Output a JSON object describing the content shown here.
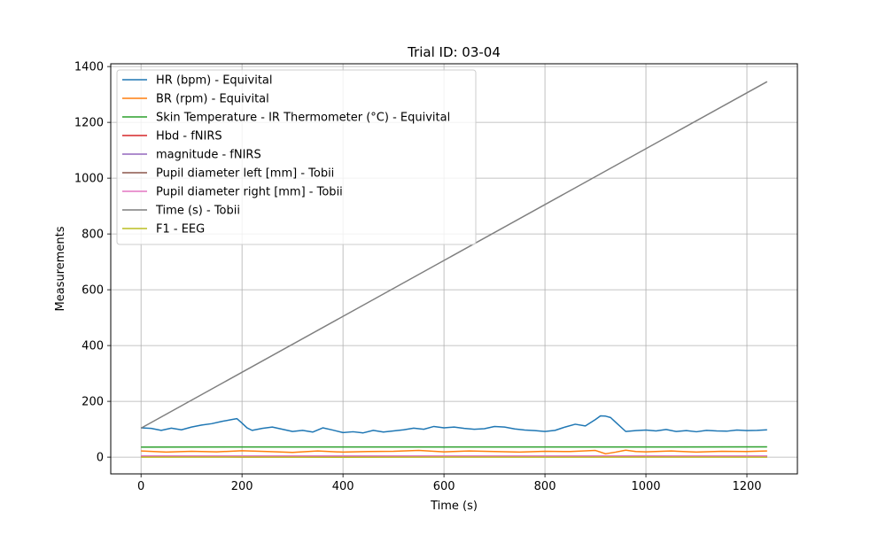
{
  "chart_data": {
    "type": "line",
    "title": "Trial ID: 03-04",
    "xlabel": "Time (s)",
    "ylabel": "Measurements",
    "xlim": [
      -60,
      1300
    ],
    "ylim": [
      -60,
      1410
    ],
    "xticks": [
      0,
      200,
      400,
      600,
      800,
      1000,
      1200
    ],
    "yticks": [
      0,
      200,
      400,
      600,
      800,
      1000,
      1200,
      1400
    ],
    "xtick_labels": [
      "0",
      "200",
      "400",
      "600",
      "800",
      "1000",
      "1200"
    ],
    "ytick_labels": [
      "0",
      "200",
      "400",
      "600",
      "800",
      "1000",
      "1200",
      "1400"
    ],
    "grid": true,
    "legend_position": "upper-left",
    "series": [
      {
        "name": "HR (bpm) - Equivital",
        "color": "#1f77b4",
        "x": [
          0,
          20,
          40,
          60,
          80,
          100,
          120,
          140,
          160,
          180,
          190,
          200,
          210,
          220,
          240,
          260,
          280,
          300,
          320,
          340,
          360,
          380,
          400,
          420,
          440,
          460,
          480,
          500,
          520,
          540,
          560,
          580,
          600,
          620,
          640,
          660,
          680,
          700,
          720,
          740,
          760,
          780,
          800,
          820,
          840,
          860,
          880,
          900,
          910,
          920,
          930,
          940,
          960,
          980,
          1000,
          1020,
          1040,
          1060,
          1080,
          1100,
          1120,
          1140,
          1160,
          1180,
          1200,
          1220,
          1240
        ],
        "y": [
          105,
          103,
          96,
          104,
          98,
          108,
          115,
          120,
          128,
          135,
          138,
          122,
          105,
          96,
          103,
          108,
          100,
          92,
          96,
          90,
          105,
          97,
          88,
          91,
          87,
          96,
          90,
          94,
          98,
          104,
          100,
          110,
          105,
          108,
          103,
          100,
          102,
          110,
          108,
          101,
          97,
          95,
          92,
          96,
          108,
          118,
          112,
          135,
          148,
          147,
          142,
          125,
          92,
          95,
          97,
          94,
          99,
          92,
          95,
          91,
          96,
          94,
          93,
          97,
          95,
          96,
          98
        ]
      },
      {
        "name": "BR (rpm) - Equivital",
        "color": "#ff7f0e",
        "x": [
          0,
          50,
          100,
          150,
          200,
          250,
          300,
          350,
          400,
          450,
          500,
          550,
          600,
          650,
          700,
          750,
          800,
          850,
          900,
          920,
          940,
          960,
          980,
          1000,
          1050,
          1100,
          1150,
          1200,
          1240
        ],
        "y": [
          22,
          18,
          21,
          19,
          23,
          20,
          17,
          22,
          18,
          20,
          21,
          24,
          19,
          22,
          20,
          18,
          21,
          20,
          24,
          12,
          18,
          25,
          20,
          19,
          22,
          18,
          21,
          20,
          22
        ]
      },
      {
        "name": "Skin Temperature - IR Thermometer (°C) - Equivital",
        "color": "#2ca02c",
        "x": [
          0,
          200,
          400,
          600,
          800,
          1000,
          1240
        ],
        "y": [
          36,
          36.5,
          36.3,
          36.4,
          36.6,
          36.5,
          36.7
        ]
      },
      {
        "name": "Hbd - fNIRS",
        "color": "#d62728",
        "x": [
          0,
          200,
          400,
          600,
          800,
          1000,
          1240
        ],
        "y": [
          1,
          0.5,
          1.2,
          0.8,
          1,
          0.7,
          1
        ]
      },
      {
        "name": "magnitude - fNIRS",
        "color": "#9467bd",
        "x": [
          0,
          200,
          400,
          600,
          800,
          1000,
          1240
        ],
        "y": [
          2,
          3,
          2.5,
          2,
          3,
          2.5,
          2
        ]
      },
      {
        "name": "Pupil diameter left [mm] - Tobii",
        "color": "#8c564b",
        "x": [
          0,
          200,
          400,
          600,
          800,
          1000,
          1240
        ],
        "y": [
          4,
          4.2,
          3.8,
          4,
          4.1,
          3.9,
          4
        ]
      },
      {
        "name": "Pupil diameter right [mm] - Tobii",
        "color": "#e377c2",
        "x": [
          0,
          200,
          400,
          600,
          800,
          1000,
          1240
        ],
        "y": [
          4.5,
          4.3,
          4.6,
          4.2,
          4.4,
          4.5,
          4.3
        ]
      },
      {
        "name": "Time (s) - Tobii",
        "color": "#7f7f7f",
        "x": [
          0,
          1240
        ],
        "y": [
          104,
          1346
        ]
      },
      {
        "name": "F1 - EEG",
        "color": "#bcbd22",
        "x": [
          0,
          200,
          400,
          600,
          800,
          1000,
          1240
        ],
        "y": [
          0,
          0.5,
          -0.5,
          0.2,
          0,
          0.3,
          0
        ]
      }
    ]
  }
}
